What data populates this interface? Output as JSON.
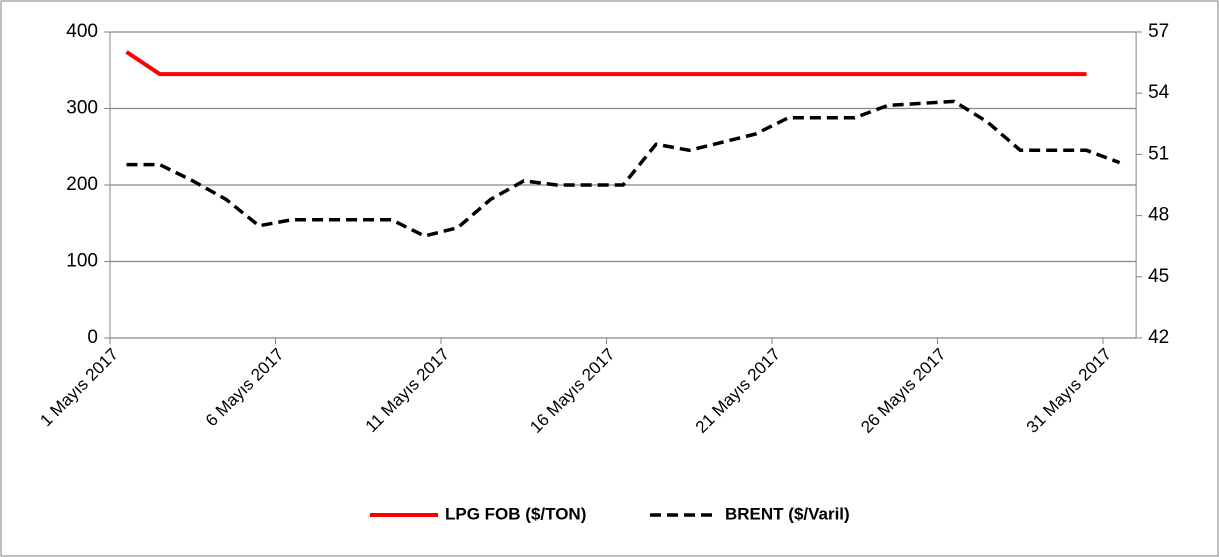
{
  "chart_data": {
    "type": "line",
    "categories": [
      "1 Mayıs 2017",
      null,
      null,
      null,
      null,
      "6 Mayıs 2017",
      null,
      null,
      null,
      null,
      "11 Mayıs 2017",
      null,
      null,
      null,
      null,
      "16 Mayıs 2017",
      null,
      null,
      null,
      null,
      "21 Mayıs 2017",
      null,
      null,
      null,
      null,
      "26 Mayıs 2017",
      null,
      null,
      null,
      null,
      "31 Mayıs 2017"
    ],
    "series": [
      {
        "name": "LPG FOB ($/TON)",
        "color": "#ff0000",
        "axis": "y",
        "dash": false,
        "values": [
          374,
          345,
          345,
          345,
          345,
          345,
          345,
          345,
          345,
          345,
          345,
          345,
          345,
          345,
          345,
          345,
          345,
          345,
          345,
          345,
          345,
          345,
          345,
          345,
          345,
          345,
          345,
          345,
          345,
          345,
          null
        ]
      },
      {
        "name": "BRENT ($/Varil)",
        "color": "#000000",
        "axis": "y2",
        "dash": true,
        "values": [
          50.5,
          50.5,
          49.7,
          48.8,
          47.5,
          47.8,
          47.8,
          47.8,
          47.8,
          47.0,
          47.4,
          48.8,
          49.7,
          49.5,
          49.5,
          49.5,
          51.5,
          51.2,
          51.6,
          52.0,
          52.8,
          52.8,
          52.8,
          53.4,
          53.5,
          53.6,
          52.6,
          51.2,
          51.2,
          51.2,
          50.6
        ]
      }
    ],
    "ylim": [
      0,
      400
    ],
    "yticks": [
      0,
      100,
      200,
      300,
      400
    ],
    "y2lim": [
      42,
      57
    ],
    "y2ticks": [
      42,
      45,
      48,
      51,
      54,
      57
    ],
    "grid": true,
    "legend": "bottom"
  }
}
